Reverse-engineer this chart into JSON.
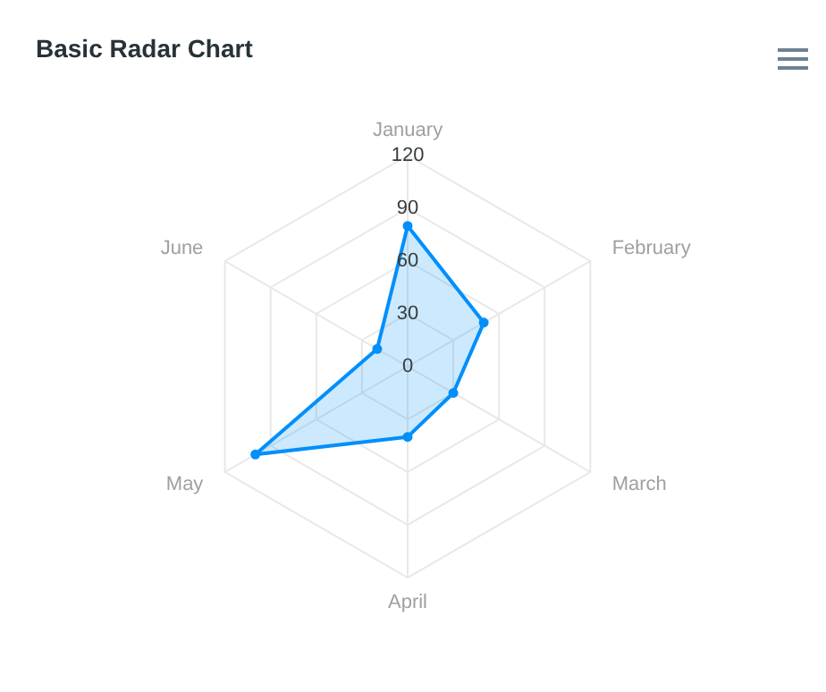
{
  "chart_data": {
    "type": "radar",
    "title": "Basic Radar Chart",
    "categories": [
      "January",
      "February",
      "March",
      "April",
      "May",
      "June"
    ],
    "series": [
      {
        "color": "#008ffb",
        "values": [
          80,
          50,
          30,
          40,
          100,
          20
        ]
      }
    ],
    "ylim": [
      0,
      120
    ],
    "yticks": [
      0,
      30,
      60,
      90,
      120
    ],
    "grid": true,
    "marker": "circle"
  }
}
